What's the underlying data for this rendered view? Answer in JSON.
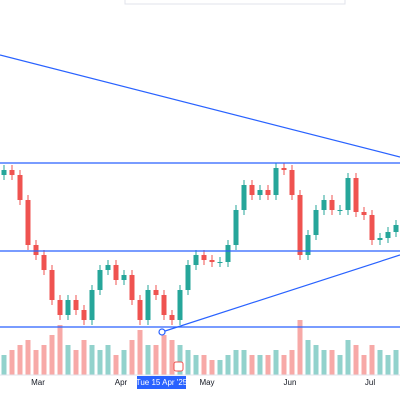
{
  "chart_data": {
    "type": "candlestick",
    "open": [
      200,
      205,
      200,
      175,
      130,
      120,
      105,
      75,
      60,
      75,
      65,
      55,
      85,
      105,
      110,
      95,
      100,
      75,
      55,
      85,
      80,
      60,
      55,
      85,
      110,
      120,
      115,
      113,
      113,
      130,
      165,
      190,
      180,
      185,
      180,
      207,
      205,
      180,
      120,
      140,
      165,
      175,
      165,
      165,
      197,
      163,
      160,
      135,
      137,
      143
    ],
    "high": [
      210,
      210,
      205,
      180,
      135,
      125,
      110,
      80,
      80,
      80,
      70,
      90,
      110,
      115,
      115,
      105,
      105,
      80,
      90,
      90,
      85,
      65,
      90,
      115,
      125,
      125,
      120,
      118,
      135,
      170,
      195,
      195,
      190,
      190,
      212,
      212,
      210,
      185,
      145,
      170,
      180,
      180,
      170,
      202,
      202,
      168,
      165,
      142,
      148,
      155
    ],
    "low": [
      195,
      195,
      170,
      125,
      115,
      100,
      70,
      55,
      55,
      60,
      50,
      50,
      80,
      100,
      90,
      90,
      70,
      50,
      50,
      75,
      55,
      50,
      50,
      80,
      105,
      110,
      108,
      108,
      108,
      125,
      160,
      175,
      175,
      175,
      175,
      200,
      175,
      115,
      115,
      135,
      160,
      160,
      160,
      160,
      158,
      155,
      130,
      130,
      132,
      138
    ],
    "close": [
      205,
      200,
      175,
      130,
      120,
      105,
      75,
      60,
      75,
      65,
      55,
      85,
      105,
      110,
      95,
      100,
      75,
      55,
      85,
      80,
      60,
      55,
      85,
      110,
      120,
      115,
      113,
      113,
      130,
      165,
      190,
      180,
      185,
      180,
      207,
      205,
      180,
      120,
      140,
      165,
      175,
      165,
      165,
      197,
      163,
      160,
      135,
      137,
      143,
      150
    ],
    "volume": [
      20,
      25,
      30,
      35,
      25,
      30,
      40,
      50,
      30,
      25,
      35,
      30,
      25,
      30,
      20,
      25,
      35,
      45,
      30,
      30,
      40,
      35,
      30,
      25,
      20,
      20,
      15,
      15,
      20,
      25,
      25,
      20,
      20,
      20,
      25,
      20,
      25,
      55,
      35,
      30,
      25,
      25,
      20,
      35,
      30,
      20,
      30,
      25,
      20,
      25
    ],
    "ylim": [
      0,
      375
    ],
    "up_color": "#26a69a",
    "down_color": "#ef5350",
    "x_labels": [
      "Mar",
      "Apr",
      "May",
      "Jun",
      "Jul"
    ],
    "crosshair_label": "Tue 15 Apr '25"
  }
}
